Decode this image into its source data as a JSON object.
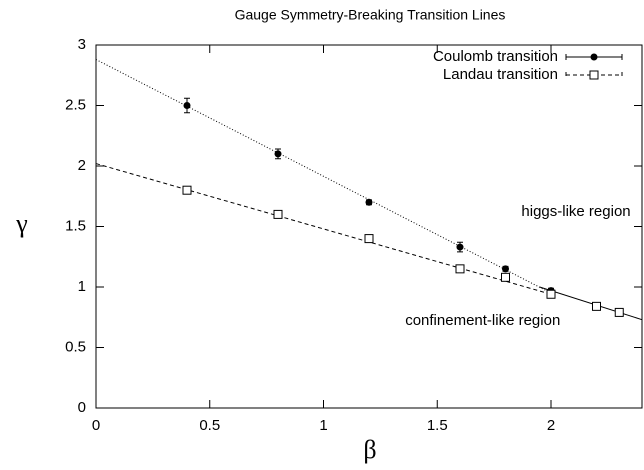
{
  "chart_data": {
    "type": "scatter",
    "title": "Gauge Symmetry-Breaking Transition Lines",
    "xlabel": "β",
    "ylabel": "γ",
    "xlim": [
      0,
      2.4
    ],
    "ylim": [
      0,
      3
    ],
    "xticks": [
      0,
      0.5,
      1,
      1.5,
      2
    ],
    "yticks": [
      0,
      0.5,
      1,
      1.5,
      2,
      2.5,
      3
    ],
    "grid": false,
    "legend": "upper right",
    "series": [
      {
        "name": "Coulomb transition",
        "color": "#000000",
        "marker": "circle",
        "dash": "",
        "x": [
          0.4,
          0.8,
          1.2,
          1.6,
          1.8,
          2.0,
          2.2,
          2.3
        ],
        "values": [
          2.5,
          2.1,
          1.7,
          1.33,
          1.15,
          0.97,
          0.84,
          0.79
        ],
        "errors": [
          0.06,
          0.04,
          0.02,
          0.04,
          0.02,
          0.02,
          0.02,
          0.02
        ]
      },
      {
        "name": "Landau transition",
        "color": "#000000",
        "marker": "square",
        "dash": "4,3",
        "x": [
          0.4,
          0.8,
          1.2,
          1.6,
          1.8,
          2.0,
          2.2,
          2.3
        ],
        "values": [
          1.8,
          1.6,
          1.4,
          1.15,
          1.08,
          0.94,
          0.84,
          0.79
        ],
        "errors": [
          0.02,
          0.02,
          0.02,
          0.02,
          0.02,
          0.02,
          0.02,
          0.02
        ]
      }
    ],
    "fit_lines": [
      {
        "x": [
          0,
          2.0
        ],
        "y": [
          2.88,
          0.95
        ],
        "dash": "1,2"
      },
      {
        "x": [
          0,
          2.0
        ],
        "y": [
          2.02,
          0.94
        ],
        "dash": "4,3"
      },
      {
        "x": [
          1.95,
          2.4
        ],
        "y": [
          1.0,
          0.73
        ],
        "dash": ""
      }
    ],
    "annotations": [
      {
        "text": "higgs-like region",
        "x": 2.11,
        "y": 1.62
      },
      {
        "text": "confinement-like region",
        "x": 1.7,
        "y": 0.72
      }
    ]
  }
}
